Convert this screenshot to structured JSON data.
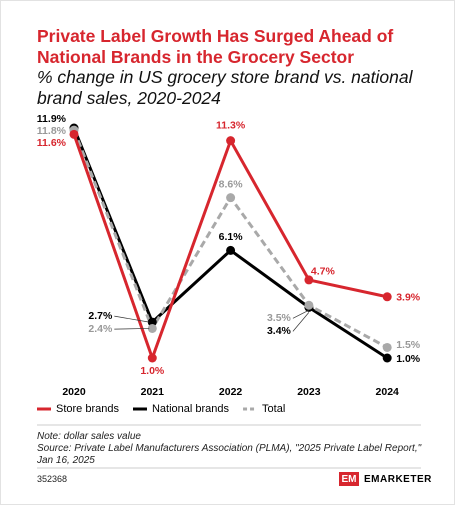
{
  "chart_data": {
    "type": "line",
    "title": "Private Label Growth Has Surged Ahead of National Brands in the Grocery Sector",
    "subtitle": "% change in US grocery store brand vs. national brand sales, 2020-2024",
    "categories": [
      "2020",
      "2021",
      "2022",
      "2023",
      "2024"
    ],
    "series": [
      {
        "name": "Store brands",
        "color": "#d7262e",
        "values": [
          11.6,
          1.0,
          11.3,
          4.7,
          3.9
        ],
        "value_labels": [
          "11.6%",
          "1.0%",
          "11.3%",
          "4.7%",
          "3.9%"
        ]
      },
      {
        "name": "National brands",
        "color": "#000000",
        "values": [
          11.9,
          2.7,
          6.1,
          3.4,
          1.0
        ],
        "value_labels": [
          "11.9%",
          "2.7%",
          "6.1%",
          "3.4%",
          "1.0%"
        ]
      },
      {
        "name": "Total",
        "color": "#a9a9a9",
        "dashed": true,
        "values": [
          11.8,
          2.4,
          8.6,
          3.5,
          1.5
        ],
        "value_labels": [
          "11.8%",
          "2.4%",
          "8.6%",
          "3.5%",
          "1.5%"
        ]
      }
    ],
    "note": "Note: dollar sales value",
    "source": "Source: Private Label Manufacturers Association (PLMA), \"2025 Private Label Report,\" Jan 16, 2025",
    "chart_id": "352368",
    "brand_mark": "EM",
    "brand": "EMARKETER"
  }
}
